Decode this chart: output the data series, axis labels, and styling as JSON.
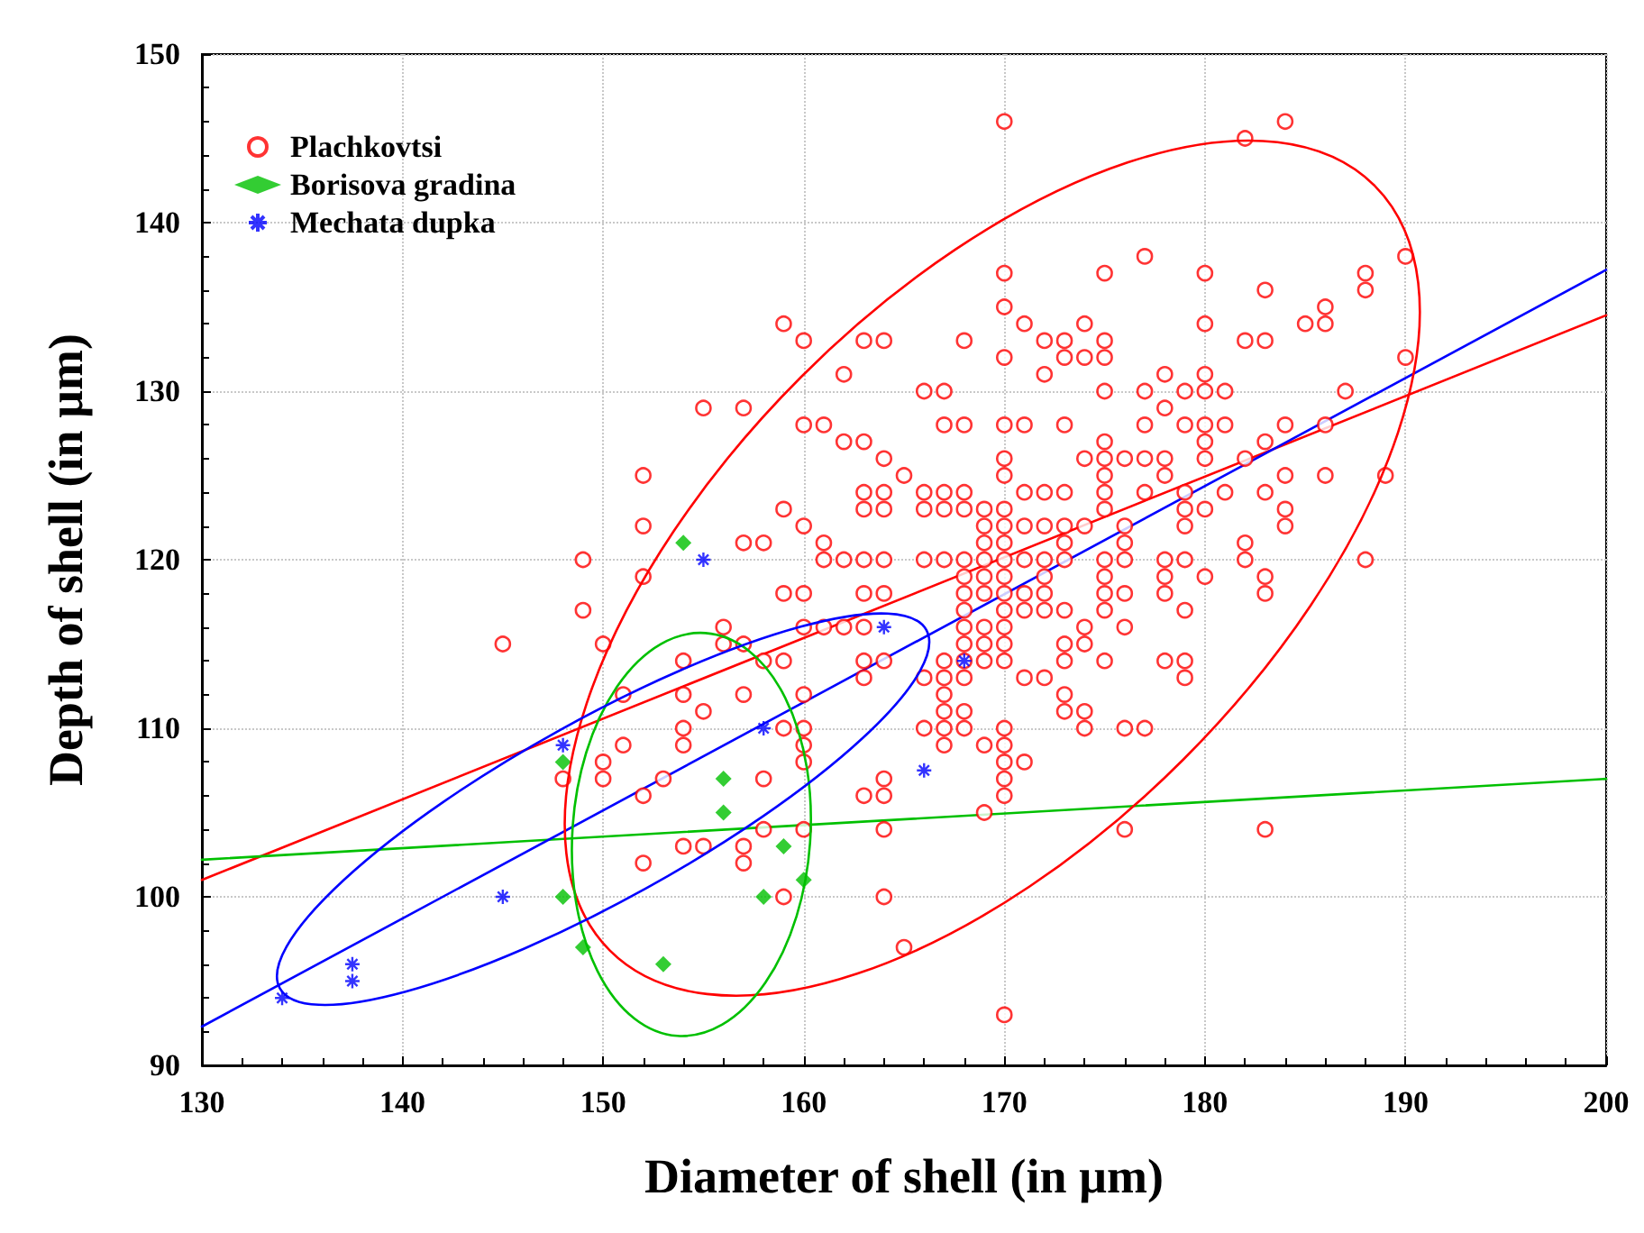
{
  "chart_data": {
    "type": "scatter",
    "xlabel": "Diameter of shell (in µm)",
    "ylabel": "Depth of shell (in µm)",
    "xlim": [
      130,
      200
    ],
    "xticks": [
      130,
      140,
      150,
      160,
      170,
      180,
      190,
      200
    ],
    "ylim": [
      90,
      150
    ],
    "yticks": [
      90,
      100,
      110,
      120,
      130,
      140,
      150
    ],
    "grid": true,
    "legend": "top left",
    "series": [
      {
        "name": "Plachkovtsi",
        "color": "#ff0000",
        "marker": "circle",
        "x": [
          170,
          182,
          177,
          170,
          175,
          180,
          170,
          171,
          174,
          180,
          168,
          172,
          173,
          175,
          170,
          173,
          174,
          175,
          172,
          178,
          180,
          166,
          167,
          175,
          177,
          179,
          180,
          181,
          178,
          167,
          168,
          170,
          171,
          173,
          177,
          179,
          180,
          181,
          175,
          180,
          170,
          174,
          175,
          176,
          177,
          178,
          180,
          170,
          175,
          178,
          166,
          167,
          168,
          171,
          172,
          173,
          175,
          177,
          179,
          181,
          166,
          167,
          168,
          169,
          170,
          175,
          179,
          180,
          169,
          170,
          171,
          172,
          173,
          174,
          176,
          179,
          169,
          170,
          173,
          176,
          166,
          167,
          168,
          169,
          170,
          171,
          172,
          173,
          175,
          176,
          178,
          179,
          168,
          169,
          170,
          172,
          175,
          178,
          180,
          168,
          169,
          170,
          171,
          172,
          175,
          176,
          178,
          168,
          170,
          171,
          172,
          173,
          175,
          179,
          168,
          169,
          170,
          174,
          176,
          168,
          169,
          170,
          173,
          174,
          167,
          168,
          169,
          170,
          173,
          175,
          178,
          179,
          166,
          167,
          168,
          171,
          172,
          179,
          167,
          173,
          167,
          168,
          173,
          174,
          166,
          167,
          168,
          170,
          174,
          176,
          177,
          167,
          169,
          170,
          170,
          171,
          170,
          170,
          169,
          176,
          170,
          184,
          190,
          188,
          188,
          183,
          186,
          186,
          185,
          182,
          183,
          190,
          187,
          184,
          186,
          183,
          182,
          184,
          186,
          189,
          183,
          184,
          184,
          182,
          182,
          188,
          183,
          183,
          183,
          159,
          160,
          163,
          164,
          162,
          155,
          157,
          160,
          161,
          162,
          163,
          164,
          165,
          152,
          163,
          164,
          159,
          163,
          164,
          152,
          160,
          157,
          158,
          161,
          149,
          161,
          162,
          163,
          164,
          152,
          159,
          160,
          163,
          164,
          149,
          156,
          160,
          161,
          162,
          163,
          150,
          156,
          157,
          154,
          158,
          159,
          163,
          164,
          151,
          154,
          157,
          160,
          163,
          155,
          154,
          154,
          151,
          159,
          160,
          160,
          160,
          150,
          150,
          148,
          153,
          158,
          164,
          164,
          163,
          152,
          160,
          158,
          164,
          154,
          155,
          157,
          157,
          152,
          159,
          164,
          165,
          145
        ],
        "values": [
          146,
          145,
          138,
          137,
          137,
          137,
          135,
          134,
          134,
          134,
          133,
          133,
          133,
          133,
          132,
          132,
          132,
          132,
          131,
          131,
          131,
          130,
          130,
          130,
          130,
          130,
          130,
          130,
          129,
          128,
          128,
          128,
          128,
          128,
          128,
          128,
          128,
          128,
          127,
          127,
          126,
          126,
          126,
          126,
          126,
          126,
          126,
          125,
          125,
          125,
          124,
          124,
          124,
          124,
          124,
          124,
          124,
          124,
          124,
          124,
          123,
          123,
          123,
          123,
          123,
          123,
          123,
          123,
          122,
          122,
          122,
          122,
          122,
          122,
          122,
          122,
          121,
          121,
          121,
          121,
          120,
          120,
          120,
          120,
          120,
          120,
          120,
          120,
          120,
          120,
          120,
          120,
          119,
          119,
          119,
          119,
          119,
          119,
          119,
          118,
          118,
          118,
          118,
          118,
          118,
          118,
          118,
          117,
          117,
          117,
          117,
          117,
          117,
          117,
          116,
          116,
          116,
          116,
          116,
          115,
          115,
          115,
          115,
          115,
          114,
          114,
          114,
          114,
          114,
          114,
          114,
          114,
          113,
          113,
          113,
          113,
          113,
          113,
          112,
          112,
          111,
          111,
          111,
          111,
          110,
          110,
          110,
          110,
          110,
          110,
          110,
          109,
          109,
          109,
          108,
          108,
          107,
          106,
          105,
          104,
          93,
          146,
          138,
          137,
          136,
          136,
          135,
          134,
          134,
          133,
          133,
          132,
          130,
          128,
          128,
          127,
          126,
          125,
          125,
          125,
          124,
          123,
          122,
          121,
          120,
          120,
          119,
          118,
          104,
          134,
          133,
          133,
          133,
          131,
          129,
          129,
          128,
          128,
          127,
          127,
          126,
          125,
          125,
          124,
          124,
          123,
          123,
          123,
          122,
          122,
          121,
          121,
          121,
          120,
          120,
          120,
          120,
          120,
          119,
          118,
          118,
          118,
          118,
          117,
          116,
          116,
          116,
          116,
          116,
          115,
          115,
          115,
          114,
          114,
          114,
          114,
          114,
          112,
          112,
          112,
          112,
          113,
          111,
          110,
          109,
          109,
          110,
          110,
          109,
          108,
          108,
          107,
          107,
          107,
          107,
          107,
          106,
          106,
          106,
          104,
          104,
          104,
          103,
          103,
          103,
          102,
          102,
          100,
          100,
          97,
          115
        ]
      },
      {
        "name": "Borisova gradina",
        "color": "#00c000",
        "marker": "diamond",
        "x": [
          148,
          148,
          149,
          153,
          154,
          156,
          156,
          158,
          159,
          160
        ],
        "values": [
          108,
          100,
          97,
          96,
          121,
          107,
          105,
          100,
          103,
          101
        ]
      },
      {
        "name": "Mechata dupka",
        "color": "#0000ff",
        "marker": "cross",
        "x": [
          134,
          137.5,
          137.5,
          145,
          148,
          155,
          158,
          164,
          166,
          168
        ],
        "values": [
          94,
          95,
          96,
          100,
          109,
          120,
          110,
          116,
          107.5,
          114
        ]
      },
      {
        "type": "line",
        "color": "#ff0000",
        "x": [
          130,
          200
        ],
        "values": [
          101,
          134.5
        ]
      },
      {
        "type": "line",
        "color": "#00c000",
        "x": [
          130,
          200
        ],
        "values": [
          102.2,
          107
        ]
      },
      {
        "type": "line",
        "color": "#0000ff",
        "x": [
          130,
          200
        ],
        "values": [
          92.3,
          137.2
        ]
      }
    ]
  }
}
